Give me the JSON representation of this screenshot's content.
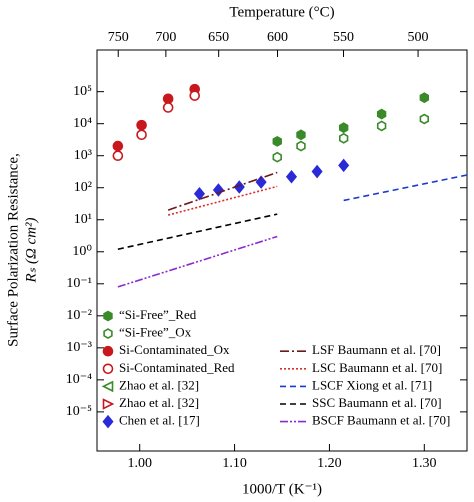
{
  "chart_data": {
    "type": "scatter",
    "xlabel": "1000/T (K⁻¹)",
    "ylabel": [
      "Surface Polarization Resistance,",
      "Rₛ (Ω cm²)"
    ],
    "x2label": "Temperature (°C)",
    "xlim": [
      0.955,
      1.345
    ],
    "xticks": [
      {
        "value": 1,
        "label": "1.00"
      },
      {
        "value": 1.1,
        "label": "1.10"
      },
      {
        "value": 1.2,
        "label": "1.20"
      },
      {
        "value": 1.3,
        "label": "1.30"
      }
    ],
    "x2ticks": [
      750,
      700,
      650,
      600,
      550,
      500
    ],
    "ylim": [
      6e-07,
      2000000
    ],
    "log_y": true,
    "yticks": [
      {
        "value": 1e-05,
        "label": "10⁻⁵"
      },
      {
        "value": 0.0001,
        "label": "10⁻⁴"
      },
      {
        "value": 0.001,
        "label": "10⁻³"
      },
      {
        "value": 0.01,
        "label": "10⁻²"
      },
      {
        "value": 0.1,
        "label": "10⁻¹"
      },
      {
        "value": 1,
        "label": "10⁰"
      },
      {
        "value": 10,
        "label": "10¹"
      },
      {
        "value": 100,
        "label": "10²"
      },
      {
        "value": 1000,
        "label": "10³"
      },
      {
        "value": 10000,
        "label": "10⁴"
      },
      {
        "value": 100000,
        "label": "10⁵"
      }
    ],
    "series": [
      {
        "name": "“Si-Free”_Red",
        "kind": "marker",
        "marker": "hexagon",
        "filled": true,
        "color": "#3a8a2a",
        "x": [
          1.145,
          1.17,
          1.215,
          1.255,
          1.3
        ],
        "values": [
          2800,
          4500,
          7500,
          20000,
          65000
        ]
      },
      {
        "name": "“Si-Free”_Ox",
        "kind": "marker",
        "marker": "hexagon",
        "filled": false,
        "color": "#3a8a2a",
        "x": [
          1.145,
          1.17,
          1.215,
          1.255,
          1.3
        ],
        "values": [
          900,
          2000,
          3500,
          8500,
          14000
        ]
      },
      {
        "name": "Si-Contaminated_Ox",
        "kind": "marker",
        "marker": "circle",
        "filled": true,
        "color": "#c8181e",
        "x": [
          0.977,
          1.002,
          1.03,
          1.058
        ],
        "values": [
          2000,
          9000,
          60000,
          120000
        ]
      },
      {
        "name": "Si-Contaminated_Red",
        "kind": "marker",
        "marker": "circle",
        "filled": false,
        "color": "#c8181e",
        "x": [
          0.977,
          1.002,
          1.03,
          1.058
        ],
        "values": [
          1000,
          4500,
          32000,
          75000
        ]
      },
      {
        "name": "Zhao et al. [32]",
        "kind": "marker",
        "marker": "triangle-left",
        "filled": false,
        "color": "#3a8a2a",
        "x": [],
        "values": []
      },
      {
        "name": "Zhao et al. [32]",
        "kind": "marker",
        "marker": "triangle-right",
        "filled": false,
        "color": "#c8181e",
        "x": [],
        "values": []
      },
      {
        "name": "Chen et al. [17]",
        "kind": "marker",
        "marker": "diamond",
        "filled": true,
        "color": "#2a2ad8",
        "x": [
          1.063,
          1.083,
          1.105,
          1.128,
          1.16,
          1.187,
          1.215
        ],
        "values": [
          65,
          85,
          105,
          150,
          220,
          320,
          500
        ]
      },
      {
        "name": "LSF Baumann et al. [70]",
        "kind": "line",
        "linestyle": "dashdot",
        "color": "#6b1a1a",
        "x": [
          1.03,
          1.145
        ],
        "values": [
          20,
          300
        ]
      },
      {
        "name": "LSC Baumann et al. [70]",
        "kind": "line",
        "linestyle": "dotted",
        "color": "#d8302a",
        "x": [
          1.03,
          1.145
        ],
        "values": [
          14,
          110
        ]
      },
      {
        "name": "LSCF Xiong et al. [71]",
        "kind": "line",
        "linestyle": "dashed",
        "color": "#1a3ad0",
        "x": [
          1.215,
          1.345
        ],
        "values": [
          40,
          250
        ]
      },
      {
        "name": "SSC Baumann et al. [70]",
        "kind": "line",
        "linestyle": "dashed",
        "color": "#000000",
        "x": [
          0.977,
          1.145
        ],
        "values": [
          1.2,
          15
        ]
      },
      {
        "name": "BSCF Baumann et al. [70]",
        "kind": "line",
        "linestyle": "dashdotdot",
        "color": "#8a2ad0",
        "x": [
          0.977,
          1.145
        ],
        "values": [
          0.08,
          3
        ]
      }
    ]
  }
}
